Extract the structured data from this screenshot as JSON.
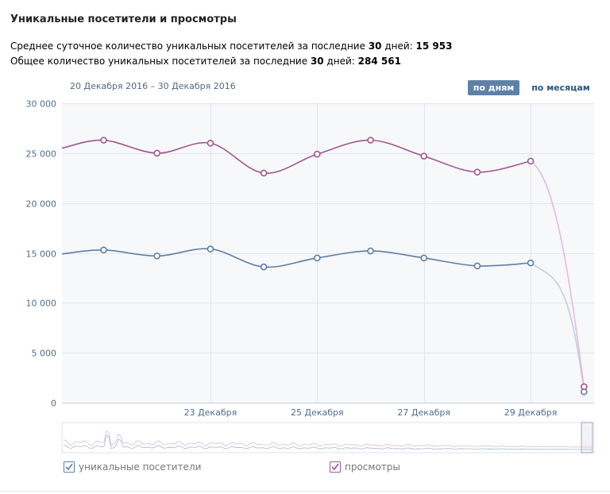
{
  "header": {
    "title": "Уникальные посетители и просмотры",
    "avg_prefix": "Среднее суточное количество уникальных посетителей за последние ",
    "avg_days": "30",
    "avg_days_suffix": " дней: ",
    "avg_value": "15 953",
    "total_prefix": "Общее количество уникальных посетителей за последние ",
    "total_days": "30",
    "total_days_suffix": " дней: ",
    "total_value": "284 561"
  },
  "controls": {
    "date_range": "20 Декабря 2016 – 30 Декабря 2016",
    "by_days": "по дням",
    "by_months": "по месяцам"
  },
  "colors": {
    "visitors": "#5d7fa6",
    "views": "#a1558f",
    "grid": "#e3e6ea",
    "plot_bg": "#f7f8fa",
    "tick_text": "#4f6d8f"
  },
  "chart_data": {
    "type": "line",
    "ylim": [
      0,
      30000
    ],
    "yticks": [
      0,
      5000,
      10000,
      15000,
      20000,
      25000,
      30000
    ],
    "ytick_labels": [
      "0",
      "5 000",
      "10 000",
      "15 000",
      "20 000",
      "25 000",
      "30 000"
    ],
    "x": [
      "21 Декабря",
      "22 Декабря",
      "23 Декабря",
      "24 Декабря",
      "25 Декабря",
      "26 Декабря",
      "27 Декабря",
      "28 Декабря",
      "29 Декабря",
      "30 Декабря"
    ],
    "xtick_labels": [
      "23 Декабря",
      "25 Декабря",
      "27 Декабря",
      "29 Декабря"
    ],
    "series": [
      {
        "name": "уникальные посетители",
        "start_value": 14900,
        "values": [
          15300,
          14700,
          15400,
          13600,
          14500,
          15200,
          14500,
          13700,
          14000,
          1100
        ]
      },
      {
        "name": "просмотры",
        "start_value": 25500,
        "values": [
          26300,
          25000,
          26000,
          23000,
          24900,
          26300,
          24700,
          23100,
          24200,
          1600
        ]
      }
    ]
  },
  "legend": {
    "visitors_label": "уникальные посетители",
    "views_label": "просмотры"
  }
}
